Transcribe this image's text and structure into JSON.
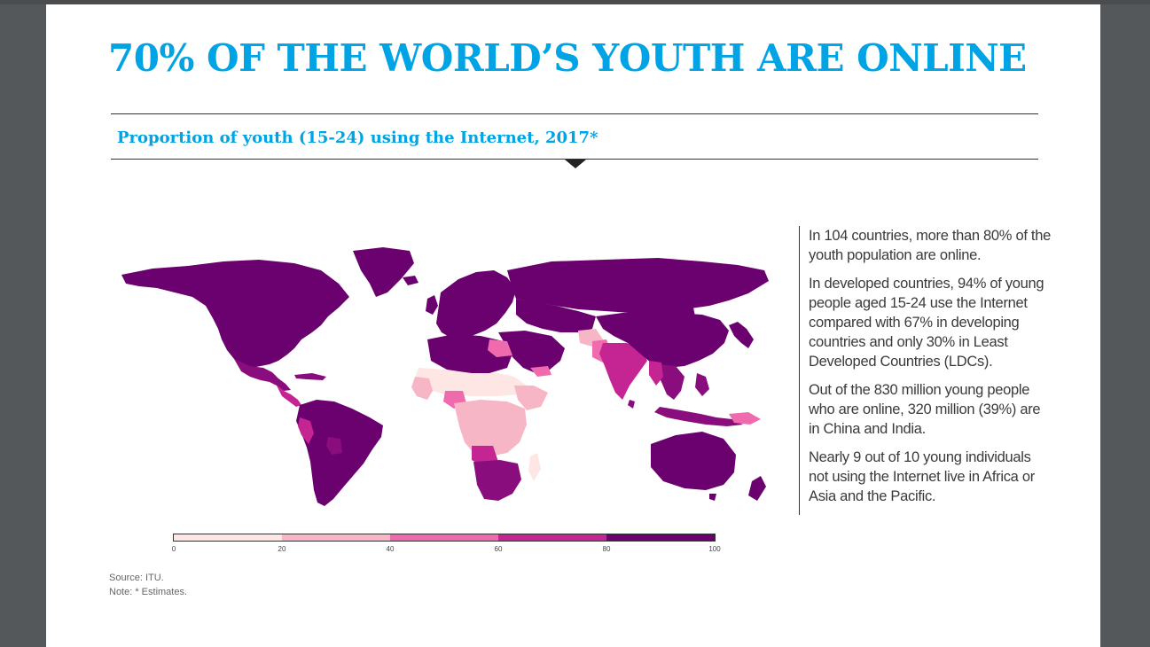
{
  "title": "70% OF THE WORLD’S YOUTH ARE ONLINE",
  "subtitle": "Proportion of youth (15-24) using the Internet, 2017*",
  "colors": {
    "title": "#00a3e4",
    "scale": [
      "#fde6e4",
      "#f7b6c5",
      "#ef6bae",
      "#c42592",
      "#8a0d7e",
      "#6a016f"
    ]
  },
  "legend": {
    "ticks": [
      "0",
      "20",
      "40",
      "60",
      "80",
      "100"
    ],
    "bins": [
      {
        "from": 0,
        "to": 20,
        "color": "#fde6e4"
      },
      {
        "from": 20,
        "to": 40,
        "color": "#f7b6c5"
      },
      {
        "from": 40,
        "to": 60,
        "color": "#ef6bae"
      },
      {
        "from": 60,
        "to": 80,
        "color": "#c42592"
      },
      {
        "from": 80,
        "to": 100,
        "color": "#6a016f"
      }
    ]
  },
  "source": {
    "line1": "Source: ITU.",
    "line2": "Note: * Estimates."
  },
  "side_text": [
    "In 104 countries, more than 80% of the youth population are online.",
    "In developed countries, 94% of young people aged 15-24 use the Internet compared with 67% in developing countries and only 30% in Least Developed Countries (LDCs).",
    "Out of the 830 million young people who are online, 320 million (39%) are in China and India.",
    "Nearly 9 out of 10 young individuals not using the Internet live in Africa or Asia and the Pacific."
  ]
}
